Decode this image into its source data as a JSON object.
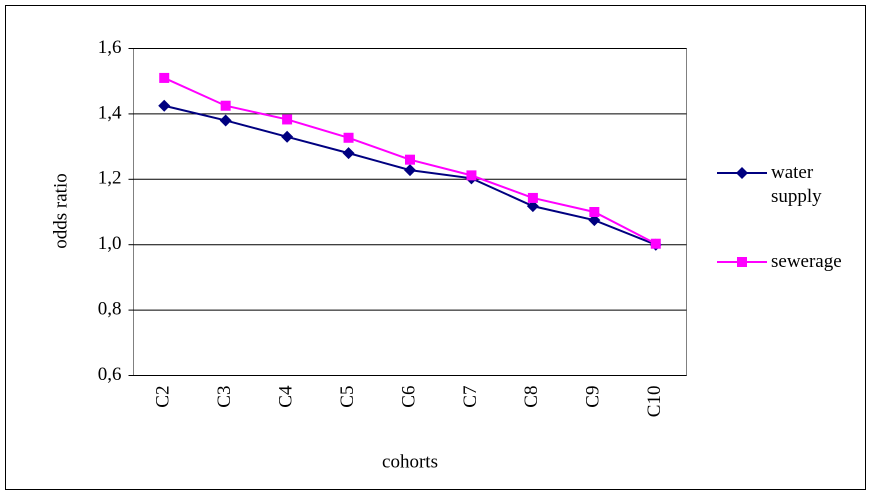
{
  "chart_data": {
    "type": "line",
    "categories": [
      "C2",
      "C3",
      "C4",
      "C5",
      "C6",
      "C7",
      "C8",
      "C9",
      "C10"
    ],
    "series": [
      {
        "name": "water supply",
        "color": "#000080",
        "marker": "diamond",
        "values": [
          1.425,
          1.38,
          1.33,
          1.28,
          1.228,
          1.203,
          1.118,
          1.075,
          1.0
        ]
      },
      {
        "name": "sewerage",
        "color": "#ff00ff",
        "marker": "square",
        "values": [
          1.51,
          1.425,
          1.383,
          1.327,
          1.26,
          1.212,
          1.143,
          1.1,
          1.003
        ]
      }
    ],
    "ylim": [
      0.6,
      1.6
    ],
    "yticks": [
      {
        "value": 0.6,
        "label": "0,6"
      },
      {
        "value": 0.8,
        "label": "0,8"
      },
      {
        "value": 1.0,
        "label": "1,0"
      },
      {
        "value": 1.2,
        "label": "1,2"
      },
      {
        "value": 1.4,
        "label": "1,4"
      },
      {
        "value": 1.6,
        "label": "1,6"
      }
    ],
    "xlabel": "cohorts",
    "ylabel": "odds ratio",
    "grid": true,
    "legend": "right"
  }
}
